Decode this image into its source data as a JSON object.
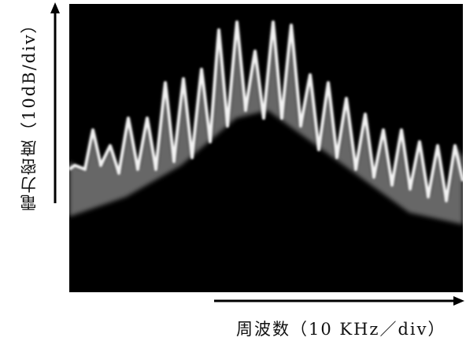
{
  "axis_labels": {
    "y": "電力密度（10dB/div）",
    "x": "周波数（10 KHz／div）"
  }
}
